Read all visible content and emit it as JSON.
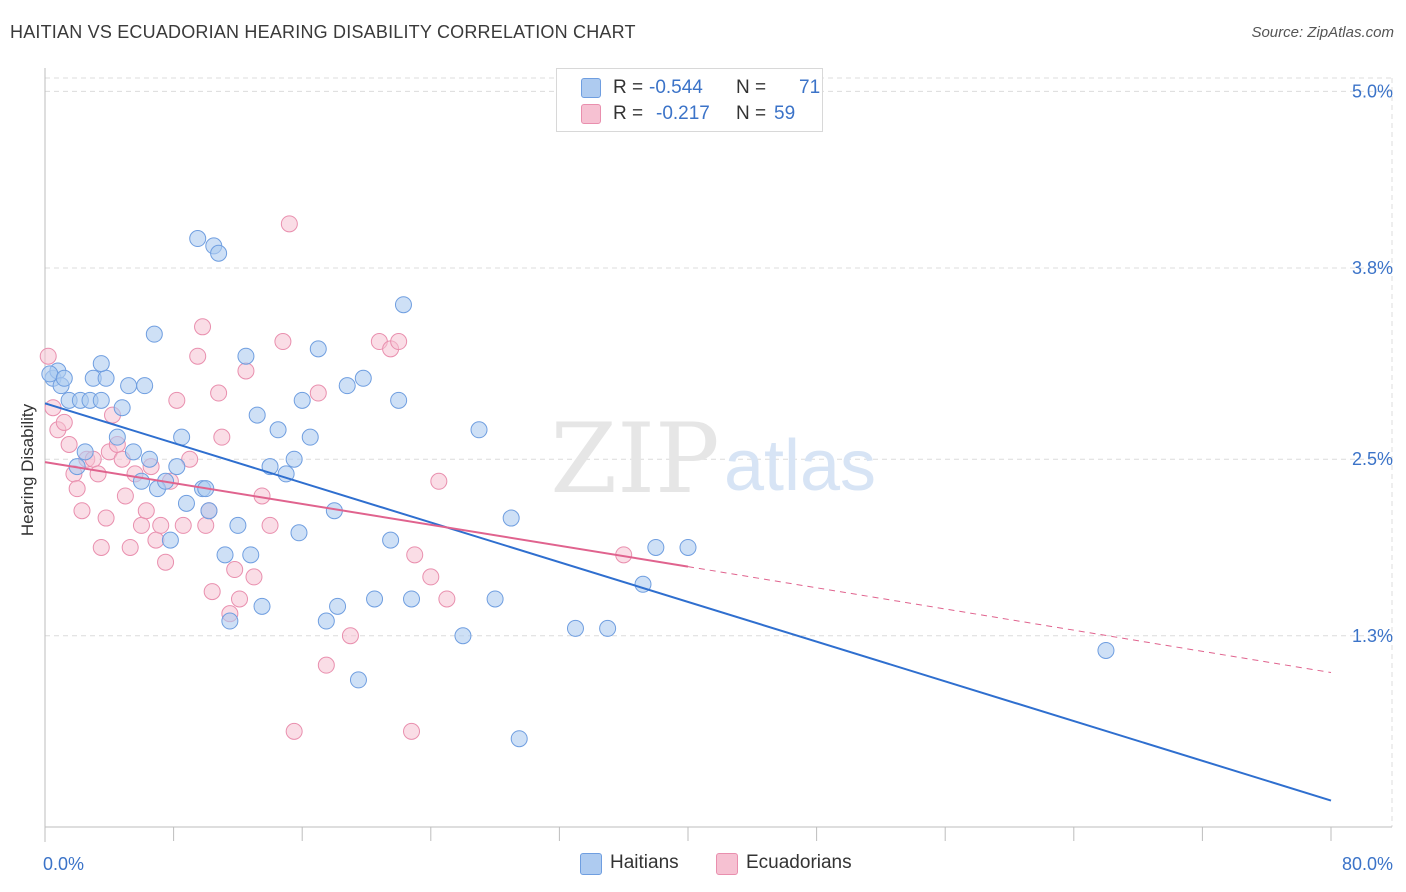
{
  "title": "HAITIAN VS ECUADORIAN HEARING DISABILITY CORRELATION CHART",
  "source": "Source: ZipAtlas.com",
  "watermark": {
    "zip": "ZIP",
    "atlas": "atlas"
  },
  "legend_top": {
    "rows": [
      {
        "r_label": "R =",
        "r_value": "-0.544",
        "n_label": "N =",
        "n_value": "71"
      },
      {
        "r_label": "R =",
        "r_value": "-0.217",
        "n_label": "N =",
        "n_value": "59"
      }
    ]
  },
  "legend_bottom": {
    "items": [
      "Haitians",
      "Ecuadorians"
    ]
  },
  "colors": {
    "haitian_fill": "#aecbf0",
    "haitian_stroke": "#6f9ee0",
    "haitian_line": "#2f6fcf",
    "ecuadorian_fill": "#f6c1d2",
    "ecuadorian_stroke": "#e98fae",
    "ecuadorian_line": "#e0638e",
    "tick_label": "#3b73c8",
    "grid": "#dcdcdc"
  },
  "chart_data": {
    "type": "scatter",
    "title": "HAITIAN VS ECUADORIAN HEARING DISABILITY CORRELATION CHART",
    "xlabel": "",
    "ylabel": "Hearing Disability",
    "xlim": [
      0,
      80
    ],
    "ylim": [
      0,
      5.2
    ],
    "x_tick_labels": [
      "0.0%",
      "80.0%"
    ],
    "y_ticks": [
      1.3,
      2.5,
      3.8,
      5.0
    ],
    "y_tick_labels": [
      "1.3%",
      "2.5%",
      "3.8%",
      "5.0%"
    ],
    "grid": true,
    "legend_position": "top-center",
    "series": [
      {
        "name": "Haitians",
        "r": -0.544,
        "n": 71,
        "trend": {
          "x": [
            0,
            80
          ],
          "y": [
            2.88,
            0.18
          ]
        },
        "points": [
          [
            0.5,
            3.05
          ],
          [
            0.8,
            3.1
          ],
          [
            1,
            3.0
          ],
          [
            1.5,
            2.9
          ],
          [
            2,
            2.45
          ],
          [
            2.5,
            2.55
          ],
          [
            2.2,
            2.9
          ],
          [
            3,
            3.05
          ],
          [
            2.8,
            2.9
          ],
          [
            3.5,
            2.9
          ],
          [
            3.8,
            3.05
          ],
          [
            3.5,
            3.15
          ],
          [
            4.5,
            2.65
          ],
          [
            4.8,
            2.85
          ],
          [
            5.2,
            3.0
          ],
          [
            5.5,
            2.55
          ],
          [
            6,
            2.35
          ],
          [
            6.2,
            3.0
          ],
          [
            6.5,
            2.5
          ],
          [
            6.8,
            3.35
          ],
          [
            7,
            2.3
          ],
          [
            7.5,
            2.35
          ],
          [
            7.8,
            1.95
          ],
          [
            8.2,
            2.45
          ],
          [
            8.5,
            2.65
          ],
          [
            8.8,
            2.2
          ],
          [
            9.5,
            4.0
          ],
          [
            9.8,
            2.3
          ],
          [
            10,
            2.3
          ],
          [
            10.2,
            2.15
          ],
          [
            10.5,
            3.95
          ],
          [
            10.8,
            3.9
          ],
          [
            11.2,
            1.85
          ],
          [
            11.5,
            1.4
          ],
          [
            12,
            2.05
          ],
          [
            12.5,
            3.2
          ],
          [
            12.8,
            1.85
          ],
          [
            13.2,
            2.8
          ],
          [
            13.5,
            1.5
          ],
          [
            14,
            2.45
          ],
          [
            14.5,
            2.7
          ],
          [
            15,
            2.4
          ],
          [
            15.5,
            2.5
          ],
          [
            15.8,
            2.0
          ],
          [
            16,
            2.9
          ],
          [
            16.5,
            2.65
          ],
          [
            17,
            3.25
          ],
          [
            17.5,
            1.4
          ],
          [
            18,
            2.15
          ],
          [
            18.2,
            1.5
          ],
          [
            18.8,
            3.0
          ],
          [
            19.5,
            1.0
          ],
          [
            19.8,
            3.05
          ],
          [
            20.5,
            1.55
          ],
          [
            21.5,
            1.95
          ],
          [
            22,
            2.9
          ],
          [
            22.3,
            3.55
          ],
          [
            22.8,
            1.55
          ],
          [
            26,
            1.3
          ],
          [
            27,
            2.7
          ],
          [
            28,
            1.55
          ],
          [
            29,
            2.1
          ],
          [
            29.5,
            0.6
          ],
          [
            33,
            1.35
          ],
          [
            35,
            1.35
          ],
          [
            37.2,
            1.65
          ],
          [
            38,
            1.9
          ],
          [
            40,
            1.9
          ],
          [
            66,
            1.2
          ],
          [
            0.3,
            3.08
          ],
          [
            1.2,
            3.05
          ]
        ]
      },
      {
        "name": "Ecuadorians",
        "r": -0.217,
        "n": 59,
        "trend": {
          "x": [
            0,
            40
          ],
          "y": [
            2.48,
            1.77
          ]
        },
        "trend_extension": {
          "x": [
            40,
            80
          ],
          "y": [
            1.77,
            1.05
          ]
        },
        "points": [
          [
            0.2,
            3.2
          ],
          [
            0.5,
            2.85
          ],
          [
            0.8,
            2.7
          ],
          [
            1.2,
            2.75
          ],
          [
            1.5,
            2.6
          ],
          [
            1.8,
            2.4
          ],
          [
            2,
            2.3
          ],
          [
            2.3,
            2.15
          ],
          [
            2.6,
            2.5
          ],
          [
            3,
            2.5
          ],
          [
            3.3,
            2.4
          ],
          [
            3.5,
            1.9
          ],
          [
            3.8,
            2.1
          ],
          [
            4,
            2.55
          ],
          [
            4.2,
            2.8
          ],
          [
            4.5,
            2.6
          ],
          [
            4.8,
            2.5
          ],
          [
            5,
            2.25
          ],
          [
            5.3,
            1.9
          ],
          [
            5.6,
            2.4
          ],
          [
            6,
            2.05
          ],
          [
            6.3,
            2.15
          ],
          [
            6.6,
            2.45
          ],
          [
            6.9,
            1.95
          ],
          [
            7.2,
            2.05
          ],
          [
            7.5,
            1.8
          ],
          [
            7.8,
            2.35
          ],
          [
            8.2,
            2.9
          ],
          [
            8.6,
            2.05
          ],
          [
            9,
            2.5
          ],
          [
            9.5,
            3.2
          ],
          [
            9.8,
            3.4
          ],
          [
            10,
            2.05
          ],
          [
            10.2,
            2.15
          ],
          [
            10.4,
            1.6
          ],
          [
            10.8,
            2.95
          ],
          [
            11,
            2.65
          ],
          [
            11.5,
            1.45
          ],
          [
            11.8,
            1.75
          ],
          [
            12.1,
            1.55
          ],
          [
            12.5,
            3.1
          ],
          [
            13,
            1.7
          ],
          [
            13.5,
            2.25
          ],
          [
            14,
            2.05
          ],
          [
            14.8,
            3.3
          ],
          [
            15.2,
            4.1
          ],
          [
            15.5,
            0.65
          ],
          [
            17,
            2.95
          ],
          [
            17.5,
            1.1
          ],
          [
            19,
            1.3
          ],
          [
            20.8,
            3.3
          ],
          [
            21.5,
            3.25
          ],
          [
            22,
            3.3
          ],
          [
            22.8,
            0.65
          ],
          [
            23,
            1.85
          ],
          [
            24,
            1.7
          ],
          [
            24.5,
            2.35
          ],
          [
            25,
            1.55
          ],
          [
            36,
            1.85
          ]
        ]
      }
    ]
  }
}
